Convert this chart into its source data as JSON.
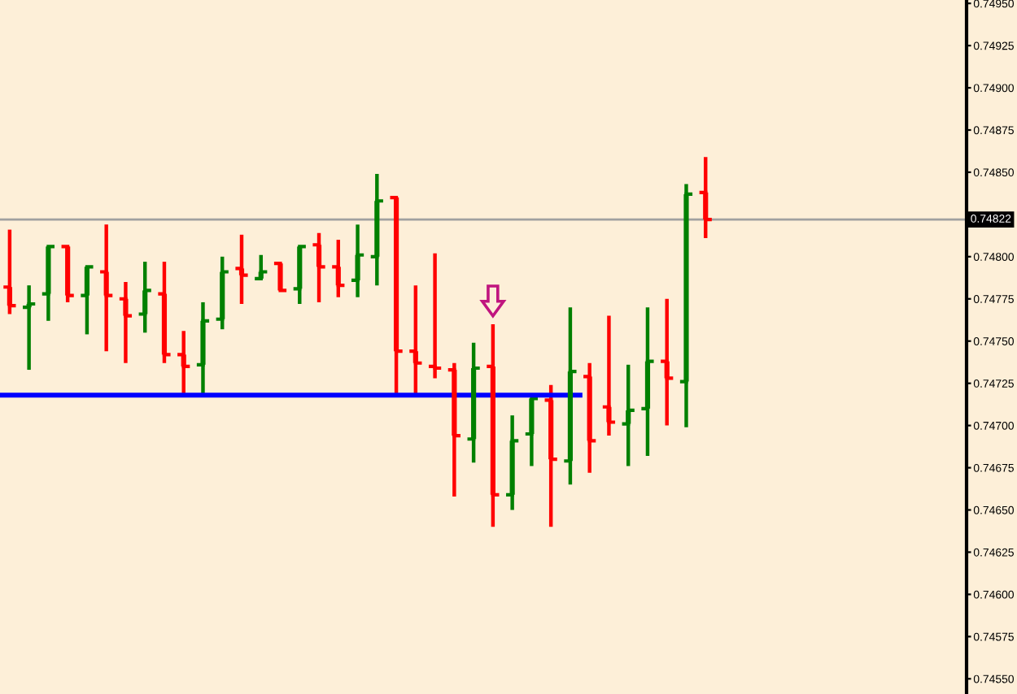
{
  "chart_data": {
    "type": "candlestick",
    "categories": [
      null,
      null,
      null,
      null,
      null,
      null,
      null,
      null,
      null,
      null,
      null,
      null,
      null,
      null,
      null,
      null,
      null,
      null,
      null,
      null,
      null,
      null,
      null,
      null,
      null,
      null,
      null,
      null,
      null,
      null,
      null,
      null,
      null,
      null,
      null,
      null,
      null,
      null,
      null,
      null,
      null,
      null,
      null,
      null,
      null,
      null,
      null,
      null,
      null,
      null
    ],
    "ohlc": [
      [
        0.74782,
        0.74816,
        0.74766,
        0.74771
      ],
      [
        0.7477,
        0.74783,
        0.74733,
        0.74772
      ],
      [
        0.74778,
        0.74806,
        0.74762,
        0.74806
      ],
      [
        0.74806,
        0.74806,
        0.74773,
        0.74777
      ],
      [
        0.74777,
        0.74794,
        0.74754,
        0.74794
      ],
      [
        0.74791,
        0.74819,
        0.74744,
        0.74777
      ],
      [
        0.74775,
        0.74785,
        0.74737,
        0.74765
      ],
      [
        0.74766,
        0.74797,
        0.74755,
        0.7478
      ],
      [
        0.74778,
        0.74797,
        0.74737,
        0.74742
      ],
      [
        0.74742,
        0.74756,
        0.74718,
        0.74735
      ],
      [
        0.74736,
        0.74773,
        0.74718,
        0.74762
      ],
      [
        0.74763,
        0.748,
        0.74757,
        0.74791
      ],
      [
        0.74793,
        0.74813,
        0.74772,
        0.74789
      ],
      [
        0.74787,
        0.74801,
        0.74786,
        0.74791
      ],
      [
        0.74796,
        0.74796,
        0.7478,
        0.7478
      ],
      [
        0.74781,
        0.74806,
        0.74772,
        0.74806
      ],
      [
        0.74807,
        0.74814,
        0.74773,
        0.74794
      ],
      [
        0.74794,
        0.7481,
        0.74776,
        0.74783
      ],
      [
        0.74786,
        0.74819,
        0.74776,
        0.74801
      ],
      [
        0.748,
        0.74849,
        0.74783,
        0.74833
      ],
      [
        0.74835,
        0.74835,
        0.74718,
        0.74744
      ],
      [
        0.74744,
        0.74783,
        0.74718,
        0.74737
      ],
      [
        0.74735,
        0.74802,
        0.74728,
        0.74734
      ],
      [
        0.74733,
        0.74737,
        0.74658,
        0.74694
      ],
      [
        0.74692,
        0.74749,
        0.74678,
        0.74734
      ],
      [
        0.74735,
        0.7476,
        0.7464,
        0.74659
      ],
      [
        0.74659,
        0.74706,
        0.7465,
        0.74691
      ],
      [
        0.74695,
        0.74716,
        0.74676,
        0.74716
      ],
      [
        0.74715,
        0.74724,
        0.7464,
        0.7468
      ],
      [
        0.74679,
        0.7477,
        0.74665,
        0.74732
      ],
      [
        0.74729,
        0.74737,
        0.74672,
        0.74691
      ],
      [
        0.74711,
        0.74765,
        0.74694,
        0.74702
      ],
      [
        0.74701,
        0.74736,
        0.74676,
        0.74709
      ],
      [
        0.7471,
        0.7477,
        0.74682,
        0.74738
      ],
      [
        0.74738,
        0.74775,
        0.747,
        0.74728
      ],
      [
        0.74726,
        0.74843,
        0.74699,
        0.74837
      ],
      [
        0.74838,
        0.74859,
        0.74811,
        0.74822
      ],
      null,
      null,
      null,
      null,
      null,
      null,
      null,
      null,
      null,
      null,
      null,
      null,
      null
    ],
    "colors": [
      "#ff0000",
      "#008000",
      "#008000",
      "#ff0000",
      "#008000",
      "#ff0000",
      "#ff0000",
      "#008000",
      "#ff0000",
      "#ff0000",
      "#008000",
      "#008000",
      "#ff0000",
      "#008000",
      "#ff0000",
      "#008000",
      "#ff0000",
      "#ff0000",
      "#008000",
      "#008000",
      "#ff0000",
      "#ff0000",
      "#ff0000",
      "#ff0000",
      "#008000",
      "#ff0000",
      "#008000",
      "#008000",
      "#ff0000",
      "#008000",
      "#ff0000",
      "#ff0000",
      "#008000",
      "#008000",
      "#ff0000",
      "#008000",
      "#ff0000",
      null,
      null,
      null,
      null,
      null,
      null,
      null,
      null,
      null,
      null,
      null,
      null,
      null
    ],
    "ylim": [
      0.74541,
      0.74952
    ],
    "yticks": [
      {
        "value": 0.7455,
        "label": "0.74550"
      },
      {
        "value": 0.74575,
        "label": "0.74575"
      },
      {
        "value": 0.746,
        "label": "0.74600"
      },
      {
        "value": 0.74625,
        "label": "0.74625"
      },
      {
        "value": 0.7465,
        "label": "0.74650"
      },
      {
        "value": 0.74675,
        "label": "0.74675"
      },
      {
        "value": 0.747,
        "label": "0.74700"
      },
      {
        "value": 0.74725,
        "label": "0.74725"
      },
      {
        "value": 0.7475,
        "label": "0.74750"
      },
      {
        "value": 0.74775,
        "label": "0.74775"
      },
      {
        "value": 0.748,
        "label": "0.74800"
      },
      {
        "value": 0.74825,
        "label": null
      },
      {
        "value": 0.7485,
        "label": "0.74850"
      },
      {
        "value": 0.74875,
        "label": "0.74875"
      },
      {
        "value": 0.749,
        "label": "0.74900"
      },
      {
        "value": 0.74925,
        "label": "0.74925"
      },
      {
        "value": 0.7495,
        "label": "0.74950"
      }
    ],
    "ref_lines": [
      {
        "axis": "y",
        "value": 0.74822,
        "label": "0.74822",
        "color": "#a0a0a0"
      },
      {
        "axis": "y",
        "value": 0.74718,
        "color": "#0000ff"
      }
    ],
    "grid": false,
    "legend": false
  }
}
